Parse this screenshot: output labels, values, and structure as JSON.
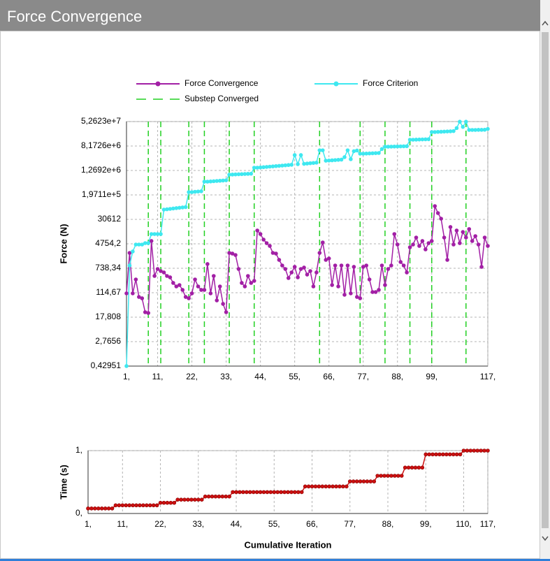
{
  "panel": {
    "title": "Force Convergence"
  },
  "chart_data": [
    {
      "type": "line",
      "ylabel": "Force (N)",
      "yscale": "log",
      "grid": true,
      "xlim": [
        1,
        117
      ],
      "xticks": [
        {
          "value": 1,
          "label": "1,"
        },
        {
          "value": 11,
          "label": "11,"
        },
        {
          "value": 22,
          "label": "22,"
        },
        {
          "value": 33,
          "label": "33,"
        },
        {
          "value": 44,
          "label": "44,"
        },
        {
          "value": 55,
          "label": "55,"
        },
        {
          "value": 66,
          "label": "66,"
        },
        {
          "value": 77,
          "label": "77,"
        },
        {
          "value": 88,
          "label": "88,"
        },
        {
          "value": 99,
          "label": "99,"
        },
        {
          "value": 117,
          "label": "117,"
        }
      ],
      "ylim": [
        0.42951,
        52623000
      ],
      "yticks": [
        {
          "value": 0.42951,
          "label": "0,42951"
        },
        {
          "value": 2.7656,
          "label": "2,7656"
        },
        {
          "value": 17.808,
          "label": "17,808"
        },
        {
          "value": 114.67,
          "label": "114,67"
        },
        {
          "value": 738.34,
          "label": "738,34"
        },
        {
          "value": 4754.2,
          "label": "4754,2"
        },
        30612,
        {
          "value": 197110,
          "label": "1,9711e+5"
        },
        {
          "value": 1269200,
          "label": "1,2692e+6"
        },
        {
          "value": 8172600,
          "label": "8,1726e+6"
        },
        {
          "value": 52623000,
          "label": "5,2623e+7"
        }
      ],
      "x": [
        1,
        2,
        3,
        4,
        5,
        6,
        7,
        8,
        9,
        10,
        11,
        12,
        13,
        14,
        15,
        16,
        17,
        18,
        19,
        20,
        21,
        22,
        23,
        24,
        25,
        26,
        27,
        28,
        29,
        30,
        31,
        32,
        33,
        34,
        35,
        36,
        37,
        38,
        39,
        40,
        41,
        42,
        43,
        44,
        45,
        46,
        47,
        48,
        49,
        50,
        51,
        52,
        53,
        54,
        55,
        56,
        57,
        58,
        59,
        60,
        61,
        62,
        63,
        64,
        65,
        66,
        67,
        68,
        69,
        70,
        71,
        72,
        73,
        74,
        75,
        76,
        77,
        78,
        79,
        80,
        81,
        82,
        83,
        84,
        85,
        86,
        87,
        88,
        89,
        90,
        91,
        92,
        93,
        94,
        95,
        96,
        97,
        98,
        99,
        100,
        101,
        102,
        103,
        104,
        105,
        106,
        107,
        108,
        109,
        110,
        111,
        112,
        113,
        114,
        115,
        116,
        117
      ],
      "series": [
        {
          "name": "Force Convergence",
          "color": "#a21fa5",
          "values": [
            109,
            2380,
            109,
            315,
            83,
            75,
            26,
            24.5,
            5890,
            411,
            700,
            597,
            537,
            411,
            370,
            242,
            185,
            206,
            142,
            83,
            75,
            109,
            315,
            185,
            142,
            142,
            1020,
            109,
            411,
            64,
            185,
            49,
            26,
            2380,
            2260,
            2030,
            700,
            242,
            185,
            411,
            242,
            283,
            13100,
            10000,
            6550,
            5010,
            4050,
            2380,
            2260,
            1400,
            914,
            700,
            351,
            537,
            822,
            370,
            700,
            780,
            457,
            597,
            185,
            537,
            2380,
            5290,
            1400,
            1560,
            206,
            914,
            185,
            914,
            98,
            914,
            109,
            822,
            83,
            75,
            822,
            914,
            315,
            121,
            121,
            142,
            914,
            206,
            700,
            914,
            10000,
            4510,
            1190,
            914,
            537,
            3650,
            4510,
            7670,
            4050,
            5890,
            3110,
            5010,
            5890,
            84100,
            49400,
            32300,
            7670,
            1400,
            17100,
            4510,
            13100,
            5010,
            11700,
            7670,
            14600,
            5890,
            8530,
            4510,
            822,
            7670,
            4050
          ]
        },
        {
          "name": "Force Criterion",
          "color": "#3ee8f0",
          "values": [
            0.43,
            914,
            2650,
            4510,
            4510,
            4510,
            5010,
            5010,
            10000,
            10000,
            10000,
            10000,
            64500,
            66000,
            68000,
            70000,
            72000,
            74000,
            76000,
            78000,
            244000,
            244000,
            250000,
            255000,
            260000,
            542000,
            542000,
            550000,
            560000,
            570000,
            580000,
            590000,
            600000,
            923000,
            930000,
            940000,
            950000,
            960000,
            970000,
            980000,
            990000,
            1570000,
            1570000,
            1600000,
            1630000,
            1660000,
            1700000,
            1730000,
            1770000,
            1800000,
            1840000,
            1880000,
            1920000,
            1960000,
            4100000,
            2050000,
            4100000,
            2100000,
            2150000,
            2200000,
            2250000,
            2300000,
            5900000,
            5900000,
            2670000,
            2700000,
            2750000,
            2800000,
            2850000,
            2900000,
            3500000,
            5900000,
            3000000,
            5500000,
            5800000,
            4550000,
            4550000,
            4600000,
            4650000,
            4700000,
            4750000,
            4800000,
            6500000,
            7760000,
            7760000,
            7800000,
            7850000,
            7900000,
            7950000,
            8000000,
            8050000,
            13200000,
            13200000,
            13300000,
            13400000,
            13500000,
            13600000,
            13700000,
            23700000,
            23700000,
            24000000,
            24200000,
            24500000,
            24800000,
            25000000,
            25500000,
            32000000,
            52000000,
            35000000,
            52000000,
            27800000,
            27800000,
            27800000,
            28000000,
            28000000,
            28200000,
            30000000
          ]
        }
      ],
      "substeps": {
        "name": "Substep Converged",
        "color": "#22d022",
        "x": [
          8,
          12,
          21,
          26,
          34,
          42,
          63,
          76,
          84,
          92,
          99,
          110
        ]
      }
    },
    {
      "type": "line",
      "ylabel": "Time (s)",
      "xlabel": "Cumulative Iteration",
      "grid": true,
      "xlim": [
        1,
        117
      ],
      "xticks": [
        {
          "value": 1,
          "label": "1,"
        },
        {
          "value": 11,
          "label": "11,"
        },
        {
          "value": 22,
          "label": "22,"
        },
        {
          "value": 33,
          "label": "33,"
        },
        {
          "value": 44,
          "label": "44,"
        },
        {
          "value": 55,
          "label": "55,"
        },
        {
          "value": 66,
          "label": "66,"
        },
        {
          "value": 77,
          "label": "77,"
        },
        {
          "value": 88,
          "label": "88,"
        },
        {
          "value": 99,
          "label": "99,"
        },
        {
          "value": 110,
          "label": "110,"
        },
        {
          "value": 117,
          "label": "117,"
        }
      ],
      "ylim": [
        0,
        1
      ],
      "yticks": [
        {
          "value": 0,
          "label": "0,"
        },
        {
          "value": 1,
          "label": "1,"
        }
      ],
      "x": [
        1,
        2,
        3,
        4,
        5,
        6,
        7,
        8,
        9,
        10,
        11,
        12,
        13,
        14,
        15,
        16,
        17,
        18,
        19,
        20,
        21,
        22,
        23,
        24,
        25,
        26,
        27,
        28,
        29,
        30,
        31,
        32,
        33,
        34,
        35,
        36,
        37,
        38,
        39,
        40,
        41,
        42,
        43,
        44,
        45,
        46,
        47,
        48,
        49,
        50,
        51,
        52,
        53,
        54,
        55,
        56,
        57,
        58,
        59,
        60,
        61,
        62,
        63,
        64,
        65,
        66,
        67,
        68,
        69,
        70,
        71,
        72,
        73,
        74,
        75,
        76,
        77,
        78,
        79,
        80,
        81,
        82,
        83,
        84,
        85,
        86,
        87,
        88,
        89,
        90,
        91,
        92,
        93,
        94,
        95,
        96,
        97,
        98,
        99,
        100,
        101,
        102,
        103,
        104,
        105,
        106,
        107,
        108,
        109,
        110,
        111,
        112,
        113,
        114,
        115,
        116,
        117
      ],
      "series": [
        {
          "name": "Time",
          "color": "#cc1010",
          "values": [
            0.08,
            0.08,
            0.08,
            0.08,
            0.08,
            0.08,
            0.08,
            0.08,
            0.13,
            0.13,
            0.13,
            0.13,
            0.13,
            0.13,
            0.13,
            0.13,
            0.13,
            0.13,
            0.13,
            0.13,
            0.13,
            0.17,
            0.17,
            0.17,
            0.17,
            0.17,
            0.22,
            0.22,
            0.22,
            0.22,
            0.22,
            0.22,
            0.22,
            0.22,
            0.27,
            0.27,
            0.27,
            0.27,
            0.27,
            0.27,
            0.27,
            0.27,
            0.34,
            0.34,
            0.34,
            0.34,
            0.34,
            0.34,
            0.34,
            0.34,
            0.34,
            0.34,
            0.34,
            0.34,
            0.34,
            0.34,
            0.34,
            0.34,
            0.34,
            0.34,
            0.34,
            0.34,
            0.34,
            0.43,
            0.43,
            0.43,
            0.43,
            0.43,
            0.43,
            0.43,
            0.43,
            0.43,
            0.43,
            0.43,
            0.43,
            0.43,
            0.51,
            0.51,
            0.51,
            0.51,
            0.51,
            0.51,
            0.51,
            0.51,
            0.6,
            0.6,
            0.6,
            0.6,
            0.6,
            0.6,
            0.6,
            0.6,
            0.73,
            0.73,
            0.73,
            0.73,
            0.73,
            0.73,
            0.94,
            0.94,
            0.94,
            0.94,
            0.94,
            0.94,
            0.94,
            0.94,
            0.94,
            0.94,
            0.94,
            1,
            1,
            1,
            1,
            1,
            1,
            1,
            1
          ]
        }
      ]
    }
  ]
}
